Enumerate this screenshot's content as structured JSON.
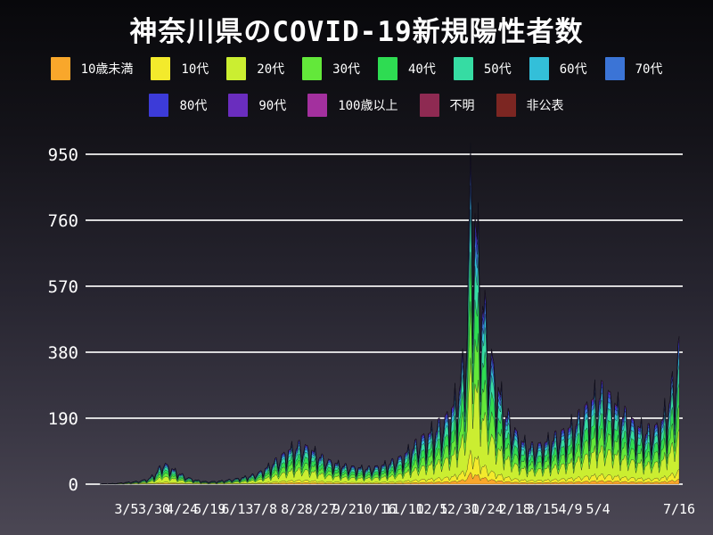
{
  "title": "神奈川県のCOVID-19新規陽性者数",
  "legend_rows": [
    [
      0,
      1,
      2,
      3,
      4,
      5,
      6,
      7
    ],
    [
      8,
      9,
      10,
      11,
      12
    ]
  ],
  "chart_data": {
    "type": "area",
    "stacked": true,
    "title": "神奈川県のCOVID-19新規陽性者数",
    "subtitle": "",
    "xlabel": "",
    "ylabel": "",
    "grid": true,
    "legend_position": "top",
    "x_range": {
      "start_date": "2020-02-10",
      "end_date": "2021-07-16",
      "n_days": 523
    },
    "ylim": [
      0,
      1010
    ],
    "y_ticks": [
      0,
      190,
      380,
      570,
      760,
      950
    ],
    "x_ticks": [
      {
        "label": "3/5",
        "day": 24
      },
      {
        "label": "3/30",
        "day": 49
      },
      {
        "label": "4/24",
        "day": 74
      },
      {
        "label": "5/19",
        "day": 99
      },
      {
        "label": "6/13",
        "day": 124
      },
      {
        "label": "7/8",
        "day": 149
      },
      {
        "label": "8/2",
        "day": 174
      },
      {
        "label": "8/27",
        "day": 199
      },
      {
        "label": "9/21",
        "day": 224
      },
      {
        "label": "10/16",
        "day": 249
      },
      {
        "label": "11/10",
        "day": 274
      },
      {
        "label": "12/5",
        "day": 299
      },
      {
        "label": "12/30",
        "day": 324
      },
      {
        "label": "1/24",
        "day": 349
      },
      {
        "label": "2/18",
        "day": 374
      },
      {
        "label": "3/15",
        "day": 399
      },
      {
        "label": "4/9",
        "day": 424
      },
      {
        "label": "5/4",
        "day": 449
      },
      {
        "label": "7/16",
        "day": 522
      }
    ],
    "series": [
      {
        "name": "10歳未満",
        "color": "#F9A72B",
        "share": 0.035
      },
      {
        "name": "10代",
        "color": "#F3EA2C",
        "share": 0.065
      },
      {
        "name": "20代",
        "color": "#CBEE31",
        "share": 0.27
      },
      {
        "name": "30代",
        "color": "#63E83A",
        "share": 0.165
      },
      {
        "name": "40代",
        "color": "#2EDC52",
        "share": 0.145
      },
      {
        "name": "50代",
        "color": "#36DCA3",
        "share": 0.125
      },
      {
        "name": "60代",
        "color": "#33BFD9",
        "share": 0.07
      },
      {
        "name": "70代",
        "color": "#3B74D6",
        "share": 0.055
      },
      {
        "name": "80代",
        "color": "#3C3BD8",
        "share": 0.04
      },
      {
        "name": "90代",
        "color": "#6A2DBE",
        "share": 0.02
      },
      {
        "name": "100歳以上",
        "color": "#A3309E",
        "share": 0.004
      },
      {
        "name": "不明",
        "color": "#8E2A52",
        "share": 0.004
      },
      {
        "name": "非公表",
        "color": "#7C2622",
        "share": 0.002
      }
    ],
    "daily_total_model": {
      "comment": "estimated daily new-positive totals: linear interpolation of envelope_points [day_index,value] multiplied by weekly_pattern[day%7] (start Monday) and jitter_pattern[day%3]",
      "envelope_points": [
        [
          0,
          1
        ],
        [
          14,
          2
        ],
        [
          24,
          5
        ],
        [
          34,
          8
        ],
        [
          44,
          15
        ],
        [
          50,
          30
        ],
        [
          57,
          60
        ],
        [
          63,
          48
        ],
        [
          70,
          34
        ],
        [
          78,
          20
        ],
        [
          86,
          12
        ],
        [
          96,
          7
        ],
        [
          106,
          8
        ],
        [
          116,
          12
        ],
        [
          126,
          17
        ],
        [
          136,
          24
        ],
        [
          143,
          32
        ],
        [
          151,
          48
        ],
        [
          161,
          72
        ],
        [
          171,
          98
        ],
        [
          181,
          112
        ],
        [
          191,
          96
        ],
        [
          201,
          74
        ],
        [
          211,
          60
        ],
        [
          221,
          52
        ],
        [
          231,
          47
        ],
        [
          241,
          45
        ],
        [
          251,
          50
        ],
        [
          261,
          60
        ],
        [
          271,
          76
        ],
        [
          281,
          102
        ],
        [
          291,
          132
        ],
        [
          301,
          152
        ],
        [
          311,
          182
        ],
        [
          319,
          225
        ],
        [
          326,
          310
        ],
        [
          331,
          460
        ],
        [
          334,
          900
        ],
        [
          338,
          760
        ],
        [
          344,
          560
        ],
        [
          350,
          410
        ],
        [
          356,
          305
        ],
        [
          364,
          220
        ],
        [
          372,
          160
        ],
        [
          380,
          122
        ],
        [
          388,
          105
        ],
        [
          396,
          110
        ],
        [
          404,
          122
        ],
        [
          412,
          136
        ],
        [
          420,
          152
        ],
        [
          428,
          172
        ],
        [
          436,
          205
        ],
        [
          444,
          240
        ],
        [
          452,
          260
        ],
        [
          460,
          245
        ],
        [
          468,
          212
        ],
        [
          476,
          186
        ],
        [
          484,
          165
        ],
        [
          492,
          150
        ],
        [
          500,
          156
        ],
        [
          507,
          182
        ],
        [
          514,
          252
        ],
        [
          519,
          330
        ],
        [
          522,
          395
        ]
      ],
      "weekly_pattern": {
        "start_weekday": "Mon",
        "factors": [
          0.52,
          0.78,
          0.96,
          1.02,
          1.08,
          1.15,
          0.92
        ]
      },
      "jitter_pattern": [
        1.0,
        0.95,
        1.07
      ],
      "peak": {
        "approx_date": "1/9",
        "approx_value": 983
      },
      "last_value": 427
    }
  }
}
